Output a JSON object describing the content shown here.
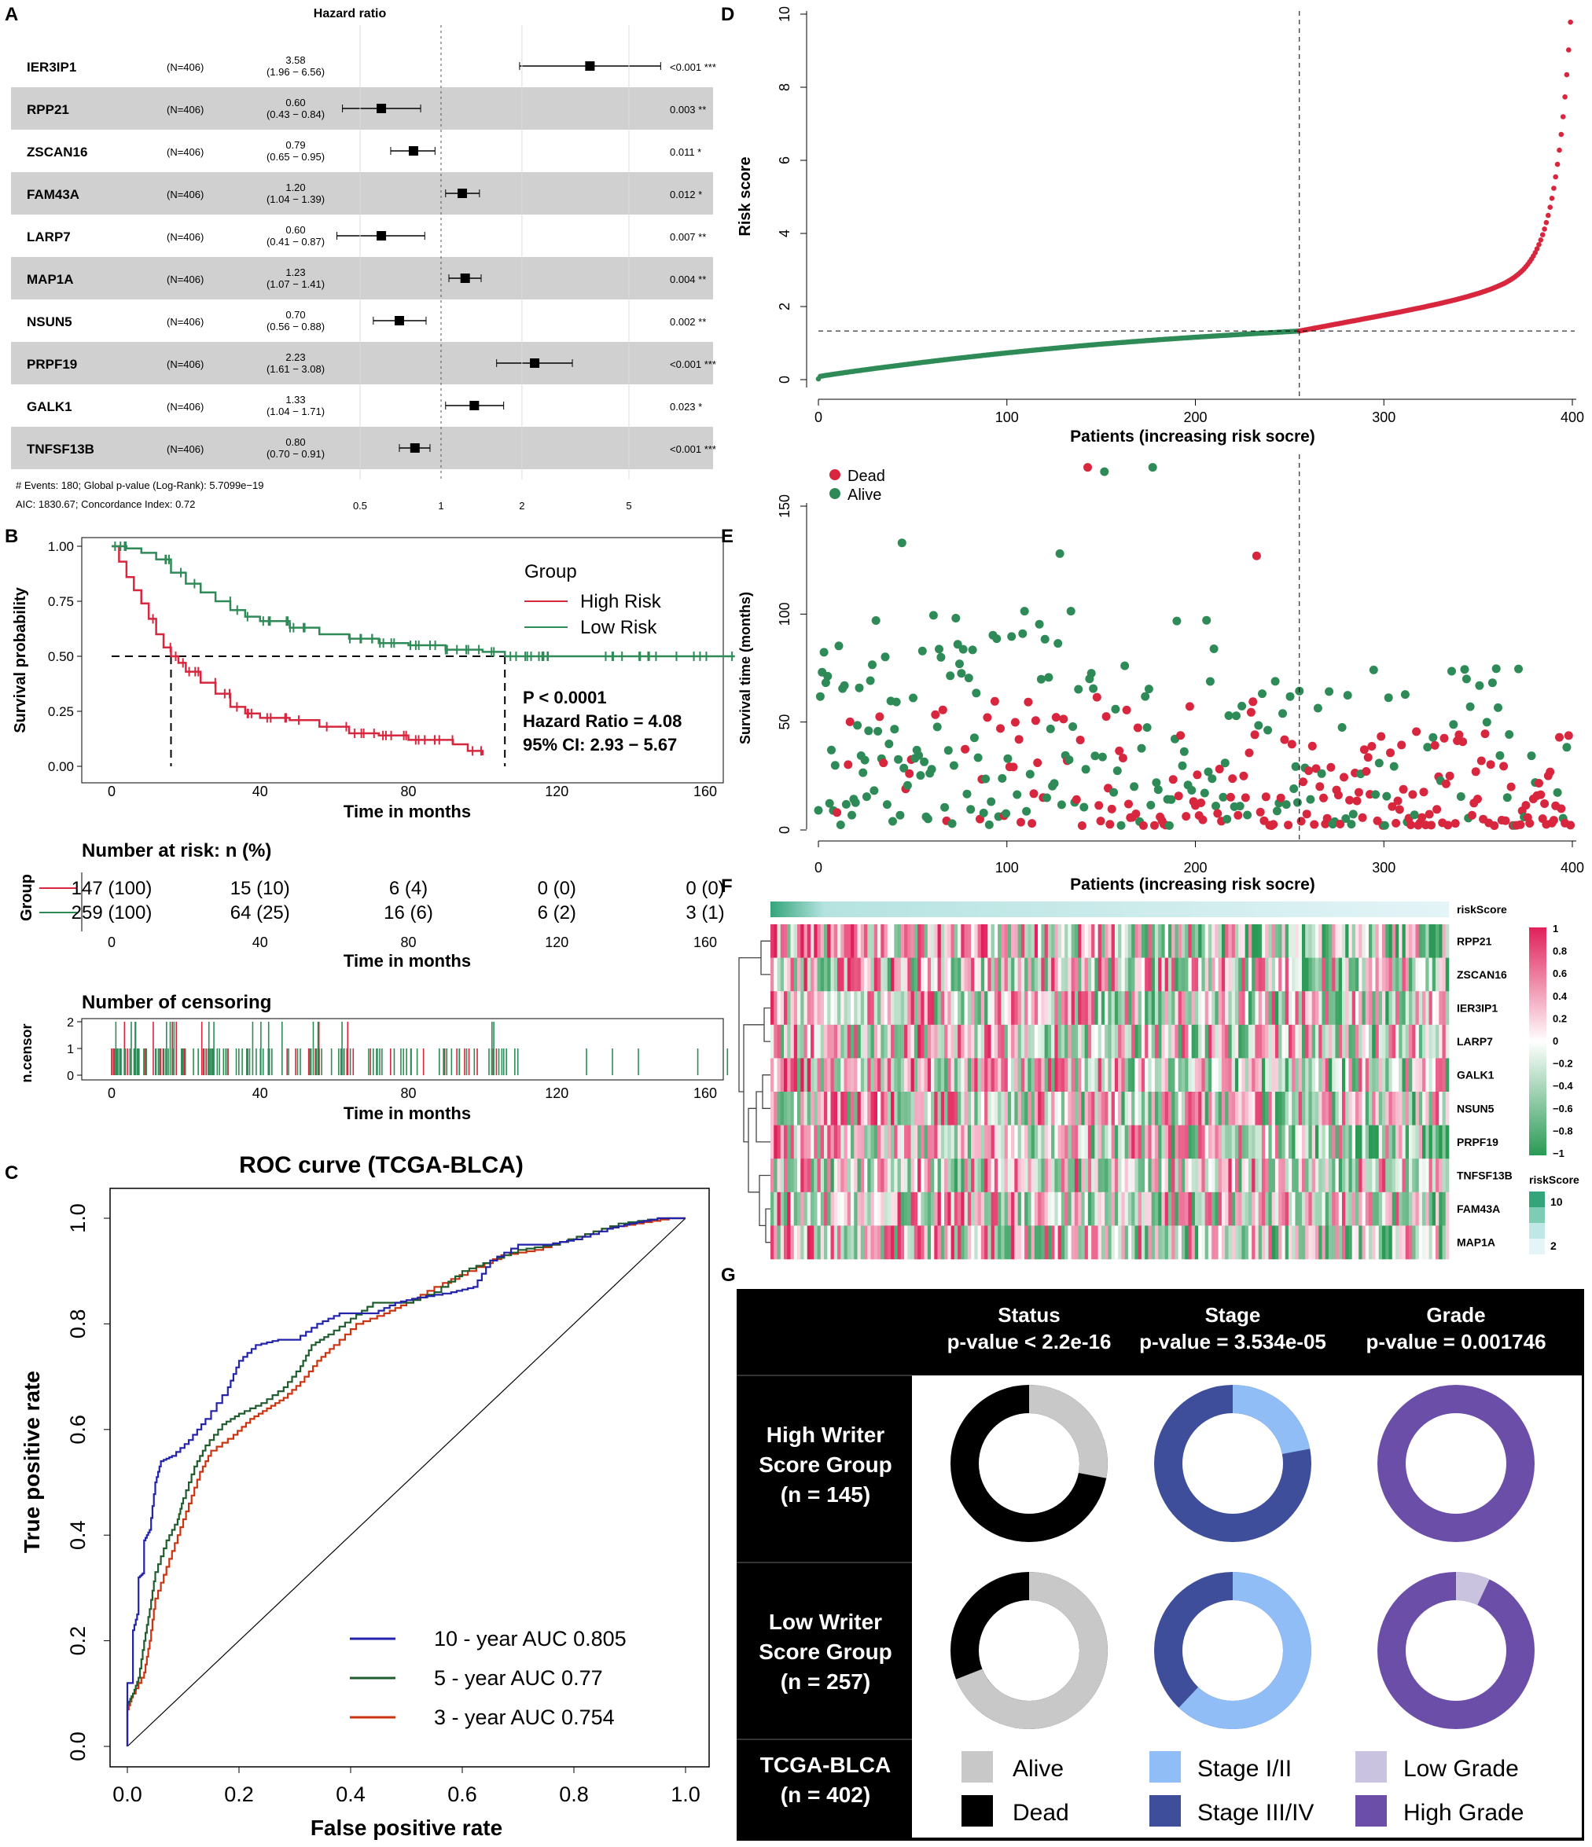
{
  "colors": {
    "high": "#d7263d",
    "low": "#2e8b57",
    "stripe": "#d0d0d0",
    "roc10": "#2222aa",
    "roc5": "#1f5c2e",
    "roc3": "#cc3311",
    "alive": "#c8c8c8",
    "dead": "#000000",
    "stage12": "#90bdf6",
    "stage34": "#3e4e9a",
    "lowgrade": "#c9c3e0",
    "highgrade": "#6b4ea8"
  },
  "panels": {
    "a": "A",
    "b": "B",
    "c": "C",
    "d": "D",
    "e": "E",
    "f": "F",
    "g": "G"
  },
  "chart_data": [
    {
      "type": "forest",
      "id": "A",
      "title": "Hazard ratio",
      "rows": [
        {
          "gene": "IER3IP1",
          "n": "(N=406)",
          "hr": "3.58",
          "ci": "(1.96 − 6.56)",
          "p": "<0.001 ***",
          "hrv": 3.58,
          "lo": 1.96,
          "hi": 6.56
        },
        {
          "gene": "RPP21",
          "n": "(N=406)",
          "hr": "0.60",
          "ci": "(0.43 − 0.84)",
          "p": "0.003 **",
          "hrv": 0.6,
          "lo": 0.43,
          "hi": 0.84
        },
        {
          "gene": "ZSCAN16",
          "n": "(N=406)",
          "hr": "0.79",
          "ci": "(0.65 − 0.95)",
          "p": "0.011 *",
          "hrv": 0.79,
          "lo": 0.65,
          "hi": 0.95
        },
        {
          "gene": "FAM43A",
          "n": "(N=406)",
          "hr": "1.20",
          "ci": "(1.04 − 1.39)",
          "p": "0.012 *",
          "hrv": 1.2,
          "lo": 1.04,
          "hi": 1.39
        },
        {
          "gene": "LARP7",
          "n": "(N=406)",
          "hr": "0.60",
          "ci": "(0.41 − 0.87)",
          "p": "0.007 **",
          "hrv": 0.6,
          "lo": 0.41,
          "hi": 0.87
        },
        {
          "gene": "MAP1A",
          "n": "(N=406)",
          "hr": "1.23",
          "ci": "(1.07 − 1.41)",
          "p": "0.004 **",
          "hrv": 1.23,
          "lo": 1.07,
          "hi": 1.41
        },
        {
          "gene": "NSUN5",
          "n": "(N=406)",
          "hr": "0.70",
          "ci": "(0.56 − 0.88)",
          "p": "0.002 **",
          "hrv": 0.7,
          "lo": 0.56,
          "hi": 0.88
        },
        {
          "gene": "PRPF19",
          "n": "(N=406)",
          "hr": "2.23",
          "ci": "(1.61 − 3.08)",
          "p": "<0.001 ***",
          "hrv": 2.23,
          "lo": 1.61,
          "hi": 3.08
        },
        {
          "gene": "GALK1",
          "n": "(N=406)",
          "hr": "1.33",
          "ci": "(1.04 − 1.71)",
          "p": "0.023 *",
          "hrv": 1.33,
          "lo": 1.04,
          "hi": 1.71
        },
        {
          "gene": "TNFSF13B",
          "n": "(N=406)",
          "hr": "0.80",
          "ci": "(0.70 − 0.91)",
          "p": "<0.001 ***",
          "hrv": 0.8,
          "lo": 0.7,
          "hi": 0.91
        }
      ],
      "xticks": [
        "0.5",
        "1",
        "2",
        "5"
      ],
      "footer1": "# Events: 180; Global p-value (Log-Rank): 5.7099e−19",
      "footer2": "AIC: 1830.67; Concordance Index: 0.72"
    },
    {
      "type": "line",
      "id": "B",
      "ylabel": "Survival probability",
      "xlabel": "Time in months",
      "yticks": [
        "0.00",
        "0.25",
        "0.50",
        "0.75",
        "1.00"
      ],
      "xticks": [
        "0",
        "40",
        "80",
        "120",
        "160"
      ],
      "xlim": [
        0,
        168
      ],
      "ylim": [
        0,
        1
      ],
      "legend_title": "Group",
      "series": [
        {
          "name": "High Risk",
          "points": [
            [
              0,
              1
            ],
            [
              2,
              0.93
            ],
            [
              4,
              0.86
            ],
            [
              6,
              0.8
            ],
            [
              8,
              0.74
            ],
            [
              10,
              0.67
            ],
            [
              12,
              0.6
            ],
            [
              14,
              0.54
            ],
            [
              16,
              0.5
            ],
            [
              18,
              0.47
            ],
            [
              20,
              0.43
            ],
            [
              24,
              0.38
            ],
            [
              28,
              0.33
            ],
            [
              32,
              0.27
            ],
            [
              36,
              0.24
            ],
            [
              40,
              0.22
            ],
            [
              48,
              0.21
            ],
            [
              56,
              0.18
            ],
            [
              64,
              0.15
            ],
            [
              72,
              0.14
            ],
            [
              80,
              0.12
            ],
            [
              88,
              0.12
            ],
            [
              92,
              0.1
            ],
            [
              96,
              0.07
            ],
            [
              100,
              0.05
            ]
          ]
        },
        {
          "name": "Low Risk",
          "points": [
            [
              0,
              1
            ],
            [
              4,
              0.99
            ],
            [
              8,
              0.97
            ],
            [
              12,
              0.94
            ],
            [
              16,
              0.88
            ],
            [
              20,
              0.83
            ],
            [
              24,
              0.79
            ],
            [
              28,
              0.75
            ],
            [
              32,
              0.71
            ],
            [
              36,
              0.68
            ],
            [
              40,
              0.66
            ],
            [
              48,
              0.63
            ],
            [
              56,
              0.6
            ],
            [
              64,
              0.58
            ],
            [
              72,
              0.56
            ],
            [
              80,
              0.55
            ],
            [
              90,
              0.53
            ],
            [
              100,
              0.52
            ],
            [
              106,
              0.5
            ],
            [
              168,
              0.5
            ]
          ]
        }
      ],
      "stats": [
        "P < 0.0001",
        "Hazard Ratio = 4.08",
        "95% CI: 2.93 − 5.67"
      ],
      "risk_title": "Number at risk: n (%)",
      "risk_ylabel": "Group",
      "risk_high": [
        "147 (100)",
        "15 (10)",
        "6 (4)",
        "0 (0)",
        "0 (0)"
      ],
      "risk_low": [
        "259 (100)",
        "64 (25)",
        "16 (6)",
        "6 (2)",
        "3 (1)"
      ],
      "censor_title": "Number of censoring",
      "censor_ylabel": "n.censor",
      "censor_yticks": [
        "0",
        "1",
        "2"
      ]
    },
    {
      "type": "line",
      "id": "C",
      "title": "ROC curve (TCGA-BLCA)",
      "xlabel": "False positive rate",
      "ylabel": "True positive rate",
      "ticks": [
        "0.0",
        "0.2",
        "0.4",
        "0.6",
        "0.8",
        "1.0"
      ],
      "xlim": [
        0,
        1
      ],
      "ylim": [
        0,
        1
      ],
      "series": [
        {
          "name": "10 - year AUC 0.805",
          "auc": 0.805,
          "points": [
            [
              0,
              0
            ],
            [
              0,
              0.12
            ],
            [
              0.01,
              0.12
            ],
            [
              0.01,
              0.22
            ],
            [
              0.02,
              0.26
            ],
            [
              0.02,
              0.32
            ],
            [
              0.03,
              0.33
            ],
            [
              0.03,
              0.39
            ],
            [
              0.04,
              0.41
            ],
            [
              0.05,
              0.5
            ],
            [
              0.06,
              0.54
            ],
            [
              0.08,
              0.55
            ],
            [
              0.11,
              0.58
            ],
            [
              0.14,
              0.62
            ],
            [
              0.18,
              0.68
            ],
            [
              0.2,
              0.73
            ],
            [
              0.23,
              0.76
            ],
            [
              0.27,
              0.77
            ],
            [
              0.3,
              0.77
            ],
            [
              0.34,
              0.8
            ],
            [
              0.38,
              0.82
            ],
            [
              0.44,
              0.82
            ],
            [
              0.48,
              0.84
            ],
            [
              0.52,
              0.85
            ],
            [
              0.58,
              0.86
            ],
            [
              0.62,
              0.87
            ],
            [
              0.65,
              0.92
            ],
            [
              0.7,
              0.95
            ],
            [
              0.75,
              0.95
            ],
            [
              0.8,
              0.96
            ],
            [
              0.86,
              0.98
            ],
            [
              0.9,
              0.99
            ],
            [
              0.95,
              1
            ],
            [
              1,
              1
            ]
          ]
        },
        {
          "name": "5 - year AUC 0.77",
          "auc": 0.77,
          "points": [
            [
              0,
              0
            ],
            [
              0,
              0.08
            ],
            [
              0.01,
              0.1
            ],
            [
              0.02,
              0.13
            ],
            [
              0.03,
              0.2
            ],
            [
              0.04,
              0.26
            ],
            [
              0.05,
              0.33
            ],
            [
              0.07,
              0.39
            ],
            [
              0.09,
              0.43
            ],
            [
              0.1,
              0.47
            ],
            [
              0.12,
              0.53
            ],
            [
              0.14,
              0.57
            ],
            [
              0.17,
              0.61
            ],
            [
              0.2,
              0.63
            ],
            [
              0.24,
              0.65
            ],
            [
              0.28,
              0.68
            ],
            [
              0.31,
              0.72
            ],
            [
              0.33,
              0.76
            ],
            [
              0.36,
              0.78
            ],
            [
              0.4,
              0.81
            ],
            [
              0.44,
              0.84
            ],
            [
              0.5,
              0.84
            ],
            [
              0.55,
              0.86
            ],
            [
              0.6,
              0.9
            ],
            [
              0.65,
              0.92
            ],
            [
              0.7,
              0.94
            ],
            [
              0.76,
              0.95
            ],
            [
              0.82,
              0.97
            ],
            [
              0.88,
              0.99
            ],
            [
              0.95,
              1
            ],
            [
              1,
              1
            ]
          ]
        },
        {
          "name": "3 - year AUC 0.754",
          "auc": 0.754,
          "points": [
            [
              0,
              0
            ],
            [
              0,
              0.07
            ],
            [
              0.01,
              0.1
            ],
            [
              0.03,
              0.14
            ],
            [
              0.04,
              0.2
            ],
            [
              0.05,
              0.28
            ],
            [
              0.07,
              0.34
            ],
            [
              0.09,
              0.4
            ],
            [
              0.11,
              0.46
            ],
            [
              0.13,
              0.52
            ],
            [
              0.15,
              0.56
            ],
            [
              0.19,
              0.59
            ],
            [
              0.22,
              0.62
            ],
            [
              0.25,
              0.64
            ],
            [
              0.28,
              0.66
            ],
            [
              0.31,
              0.69
            ],
            [
              0.34,
              0.73
            ],
            [
              0.37,
              0.76
            ],
            [
              0.41,
              0.8
            ],
            [
              0.46,
              0.82
            ],
            [
              0.5,
              0.84
            ],
            [
              0.55,
              0.87
            ],
            [
              0.61,
              0.9
            ],
            [
              0.67,
              0.93
            ],
            [
              0.73,
              0.94
            ],
            [
              0.79,
              0.96
            ],
            [
              0.85,
              0.98
            ],
            [
              0.91,
              0.99
            ],
            [
              0.97,
              1
            ],
            [
              1,
              1
            ]
          ]
        }
      ]
    },
    {
      "type": "scatter",
      "id": "D",
      "ylabel": "Risk score",
      "xlabel": "Patients (increasing risk socre)",
      "xticks": [
        "0",
        "100",
        "200",
        "300",
        "400"
      ],
      "yticks": [
        "0",
        "2",
        "4",
        "6",
        "8",
        "10"
      ],
      "xlim": [
        0,
        406
      ],
      "ylim": [
        0,
        10
      ],
      "cutoff_patient": 259,
      "cutoff_score": 1.33,
      "n_low": 259,
      "n_high": 147
    },
    {
      "type": "scatter",
      "id": "E",
      "ylabel": "Survival time (months)",
      "xlabel": "Patients (increasing risk socre)",
      "xticks": [
        "0",
        "100",
        "200",
        "300",
        "400"
      ],
      "yticks": [
        "0",
        "50",
        "100",
        "150"
      ],
      "xlim": [
        0,
        406
      ],
      "ylim": [
        0,
        170
      ],
      "legend": [
        "Dead",
        "Alive"
      ],
      "cutoff_patient": 259
    },
    {
      "type": "heatmap",
      "id": "F",
      "top_label": "riskScore",
      "genes": [
        "RPP21",
        "ZSCAN16",
        "IER3IP1",
        "LARP7",
        "GALK1",
        "NSUN5",
        "PRPF19",
        "TNFSF13B",
        "FAM43A",
        "MAP1A"
      ],
      "scale": [
        "1",
        "0.8",
        "0.6",
        "0.4",
        "0.2",
        "0",
        "−0.2",
        "−0.4",
        "−0.6",
        "−0.8",
        "−1"
      ],
      "risk_legend_title": "riskScore",
      "risk_legend": [
        "10",
        "2"
      ]
    },
    {
      "type": "table",
      "id": "G",
      "cols": [
        {
          "name": "Status",
          "p": "p-value < 2.2e-16"
        },
        {
          "name": "Stage",
          "p": "p-value = 3.534e-05"
        },
        {
          "name": "Grade",
          "p": "p-value = 0.001746"
        }
      ],
      "rows": [
        {
          "l1": "High Writer",
          "l2": "Score Group",
          "l3": "(n = 145)",
          "fracs": [
            0.28,
            0.22,
            0.0
          ]
        },
        {
          "l1": "Low Writer",
          "l2": "Score Group",
          "l3": "(n = 257)",
          "fracs": [
            0.69,
            0.62,
            0.07
          ]
        }
      ],
      "cohort1": "TCGA-BLCA",
      "cohort2": "(n = 402)",
      "legend": [
        [
          "Alive",
          "Dead"
        ],
        [
          "Stage I/II",
          "Stage III/IV"
        ],
        [
          "Low Grade",
          "High Grade"
        ]
      ]
    }
  ]
}
